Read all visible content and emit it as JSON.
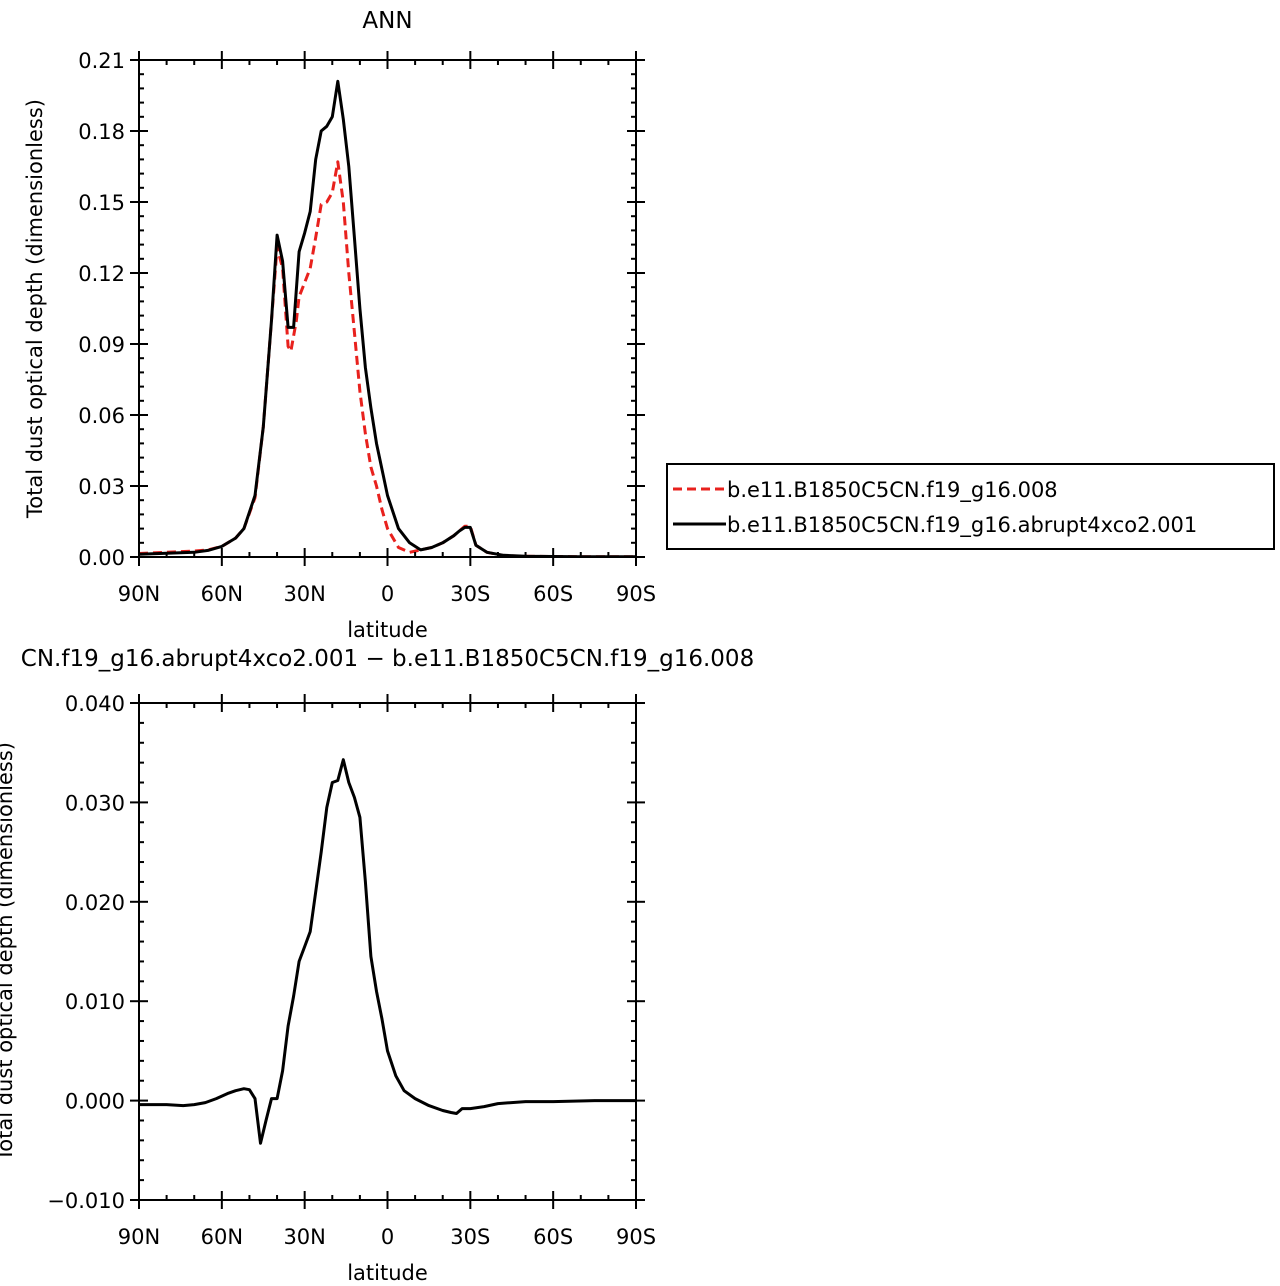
{
  "chart_data": [
    {
      "type": "line",
      "title": "ANN",
      "xlabel": "latitude",
      "ylabel": "Total dust optical depth (dimensionless)",
      "xlim": [
        90,
        -90
      ],
      "ylim": [
        0,
        0.21
      ],
      "x_ticks": [
        {
          "value": 90,
          "label": "90N"
        },
        {
          "value": 60,
          "label": "60N"
        },
        {
          "value": 30,
          "label": "30N"
        },
        {
          "value": 0,
          "label": "0"
        },
        {
          "value": -30,
          "label": "30S"
        },
        {
          "value": -60,
          "label": "60S"
        },
        {
          "value": -90,
          "label": "90S"
        }
      ],
      "y_ticks": [
        {
          "value": 0,
          "label": "0.00"
        },
        {
          "value": 0.03,
          "label": "0.03"
        },
        {
          "value": 0.06,
          "label": "0.06"
        },
        {
          "value": 0.09,
          "label": "0.09"
        },
        {
          "value": 0.12,
          "label": "0.12"
        },
        {
          "value": 0.15,
          "label": "0.15"
        },
        {
          "value": 0.18,
          "label": "0.18"
        },
        {
          "value": 0.21,
          "label": "0.21"
        }
      ],
      "legend": {
        "placement": "outside-right"
      },
      "series": [
        {
          "name": "b.e11.B1850C5CN.f19_g16.008",
          "color": "#e8211d",
          "dash": "dashed",
          "x": [
            90,
            80,
            70,
            65,
            60,
            55,
            52,
            48,
            45,
            42,
            40,
            38,
            36,
            35,
            33,
            32,
            30,
            28,
            26,
            24,
            22,
            20,
            18,
            16,
            14,
            12,
            10,
            8,
            6,
            4,
            2,
            0,
            -4,
            -8,
            -12,
            -16,
            -20,
            -24,
            -26,
            -28,
            -30,
            -32,
            -36,
            -42,
            -50,
            -60,
            -70,
            -80,
            -90
          ],
          "y": [
            0.0015,
            0.002,
            0.0025,
            0.003,
            0.0045,
            0.008,
            0.012,
            0.025,
            0.055,
            0.1,
            0.131,
            0.122,
            0.089,
            0.087,
            0.1,
            0.11,
            0.116,
            0.122,
            0.135,
            0.149,
            0.15,
            0.154,
            0.167,
            0.15,
            0.12,
            0.095,
            0.07,
            0.052,
            0.038,
            0.03,
            0.02,
            0.012,
            0.004,
            0.002,
            0.003,
            0.004,
            0.006,
            0.009,
            0.011,
            0.013,
            0.013,
            0.005,
            0.002,
            0.0006,
            0.0003,
            0.0002,
            0.0001,
            0.0001,
            0.0001
          ]
        },
        {
          "name": "b.e11.B1850C5CN.f19_g16.abrupt4xco2.001",
          "color": "#000000",
          "dash": "solid",
          "x": [
            90,
            80,
            70,
            65,
            60,
            55,
            52,
            48,
            45,
            42,
            40,
            38,
            36,
            34,
            32,
            30,
            28,
            26,
            24,
            22,
            20,
            18,
            16,
            14,
            12,
            10,
            8,
            6,
            4,
            2,
            0,
            -4,
            -8,
            -12,
            -16,
            -20,
            -24,
            -26,
            -28,
            -30,
            -32,
            -36,
            -42,
            -50,
            -60,
            -70,
            -80,
            -90
          ],
          "y": [
            0.0012,
            0.0016,
            0.002,
            0.0028,
            0.0045,
            0.008,
            0.012,
            0.026,
            0.055,
            0.1,
            0.136,
            0.125,
            0.097,
            0.097,
            0.129,
            0.137,
            0.146,
            0.168,
            0.18,
            0.182,
            0.186,
            0.201,
            0.185,
            0.165,
            0.135,
            0.105,
            0.08,
            0.063,
            0.048,
            0.037,
            0.026,
            0.012,
            0.006,
            0.003,
            0.004,
            0.006,
            0.009,
            0.011,
            0.0125,
            0.0125,
            0.005,
            0.002,
            0.0007,
            0.0003,
            0.0002,
            0.0001,
            0.0001,
            0.0001
          ]
        }
      ]
    },
    {
      "type": "line",
      "title": "CN.f19_g16.abrupt4xco2.001 − b.e11.B1850C5CN.f19_g16.008",
      "xlabel": "latitude",
      "ylabel": "Total dust optical depth (dimensionless)",
      "xlim": [
        90,
        -90
      ],
      "ylim": [
        -0.01,
        0.04
      ],
      "x_ticks": [
        {
          "value": 90,
          "label": "90N"
        },
        {
          "value": 60,
          "label": "60N"
        },
        {
          "value": 30,
          "label": "30N"
        },
        {
          "value": 0,
          "label": "0"
        },
        {
          "value": -30,
          "label": "30S"
        },
        {
          "value": -60,
          "label": "60S"
        },
        {
          "value": -90,
          "label": "90S"
        }
      ],
      "y_ticks": [
        {
          "value": -0.01,
          "label": "−0.010"
        },
        {
          "value": 0,
          "label": "0.000"
        },
        {
          "value": 0.01,
          "label": "0.010"
        },
        {
          "value": 0.02,
          "label": "0.020"
        },
        {
          "value": 0.03,
          "label": "0.030"
        },
        {
          "value": 0.04,
          "label": "0.040"
        }
      ],
      "series": [
        {
          "color": "#000000",
          "dash": "solid",
          "x": [
            90,
            80,
            74,
            70,
            66,
            62,
            58,
            55,
            52,
            50,
            48,
            46,
            44,
            42,
            40,
            38,
            36,
            34,
            32,
            30,
            28,
            26,
            24,
            22,
            20,
            18,
            16,
            14,
            12,
            10,
            8,
            6,
            4,
            2,
            0,
            -3,
            -6,
            -10,
            -15,
            -20,
            -23,
            -25,
            -27,
            -30,
            -35,
            -40,
            -50,
            -60,
            -75,
            -90
          ],
          "y": [
            -0.0004,
            -0.0004,
            -0.0005,
            -0.0004,
            -0.0002,
            0.0002,
            0.0007,
            0.001,
            0.0012,
            0.0011,
            0.0002,
            -0.0043,
            -0.002,
            0.0002,
            0.0002,
            0.003,
            0.0075,
            0.0105,
            0.014,
            0.0155,
            0.017,
            0.021,
            0.025,
            0.0295,
            0.032,
            0.0322,
            0.0343,
            0.032,
            0.0305,
            0.0285,
            0.022,
            0.0145,
            0.011,
            0.0082,
            0.005,
            0.0025,
            0.001,
            0.0002,
            -0.0005,
            -0.001,
            -0.0012,
            -0.0013,
            -0.0008,
            -0.0008,
            -0.0006,
            -0.0003,
            -0.0001,
            -0.0001,
            0,
            0
          ]
        }
      ]
    }
  ]
}
